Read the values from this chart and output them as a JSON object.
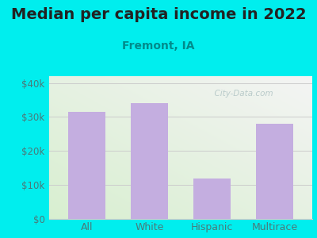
{
  "title": "Median per capita income in 2022",
  "subtitle": "Fremont, IA",
  "categories": [
    "All",
    "White",
    "Hispanic",
    "Multirace"
  ],
  "values": [
    31500,
    34000,
    12000,
    28000
  ],
  "bar_color": "#c4aee0",
  "bar_edge_color": "#b090cc",
  "title_fontsize": 14,
  "subtitle_fontsize": 10,
  "subtitle_color": "#008B8B",
  "title_color": "#222222",
  "outer_bg_color": "#00EEEE",
  "ytick_labels": [
    "$0",
    "$10k",
    "$20k",
    "$30k",
    "$40k"
  ],
  "ytick_values": [
    0,
    10000,
    20000,
    30000,
    40000
  ],
  "ylim": [
    0,
    42000
  ],
  "tick_color": "#4a7a7a",
  "grid_color": "#cccccc",
  "watermark_text": "  City-Data.com",
  "watermark_color": "#b0c4c4"
}
